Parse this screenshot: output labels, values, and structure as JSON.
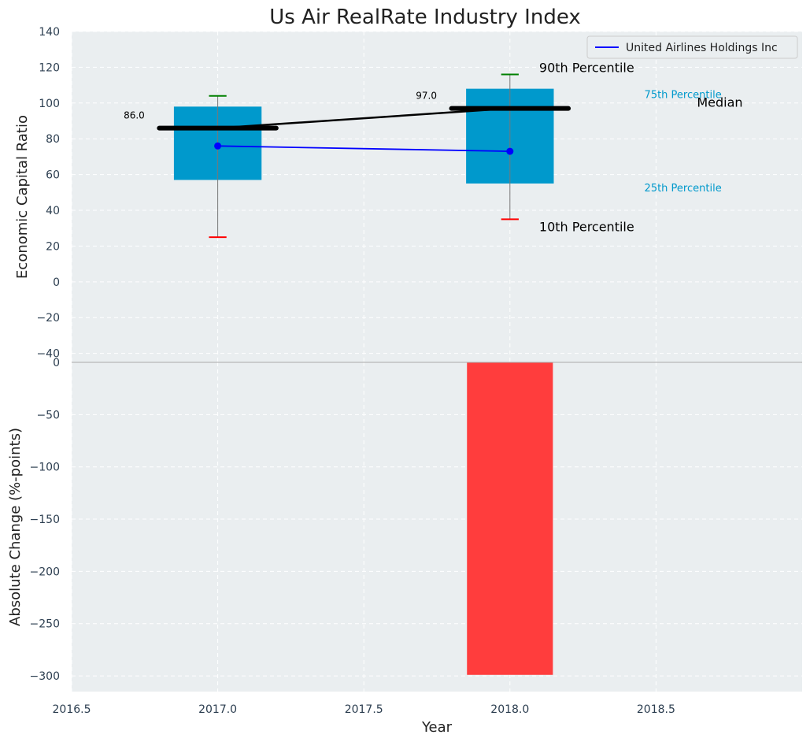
{
  "chart_data": {
    "title": "Us Air RealRate Industry Index",
    "top_panel": {
      "type": "box",
      "ylabel": "Economic Capital Ratio",
      "ylim": [
        -45,
        140
      ],
      "yticks": [
        -40,
        -20,
        0,
        20,
        40,
        60,
        80,
        100,
        120,
        140
      ],
      "boxes": [
        {
          "year": 2017,
          "p10": 25,
          "p25": 57,
          "median": 86,
          "p75": 98,
          "p90": 104
        },
        {
          "year": 2018,
          "p10": 35,
          "p25": 55,
          "median": 97,
          "p75": 108,
          "p90": 116
        }
      ],
      "median_labels": [
        "86.0",
        "97.0"
      ],
      "series": [
        {
          "name": "United Airlines Holdings Inc",
          "x": [
            2017,
            2018
          ],
          "values": [
            76,
            73
          ],
          "color": "#0000ff"
        }
      ],
      "annotations": {
        "p90": "90th Percentile",
        "p75": "75th Percentile",
        "median": "Median",
        "p25": "25th Percentile",
        "p10": "10th Percentile"
      },
      "legend": "top-right"
    },
    "bottom_panel": {
      "type": "bar",
      "ylabel": "Absolute Change (%-points)",
      "xlabel": "Year",
      "ylim": [
        -315,
        0
      ],
      "yticks": [
        0,
        -50,
        -100,
        -150,
        -200,
        -250,
        -300
      ],
      "bars": [
        {
          "x": 2018,
          "value": -299
        }
      ],
      "color": "#ff3d3d"
    },
    "xlim": [
      2016.5,
      2019.0
    ],
    "xticks": [
      "2016.5",
      "2017.0",
      "2017.5",
      "2018.0",
      "2018.5"
    ],
    "grid": true,
    "colors": {
      "box": "#0099cc",
      "median": "#000000",
      "p90_cap": "#008000",
      "p10_cap": "#ff0000",
      "panel_bg": "#eaeef0"
    }
  }
}
